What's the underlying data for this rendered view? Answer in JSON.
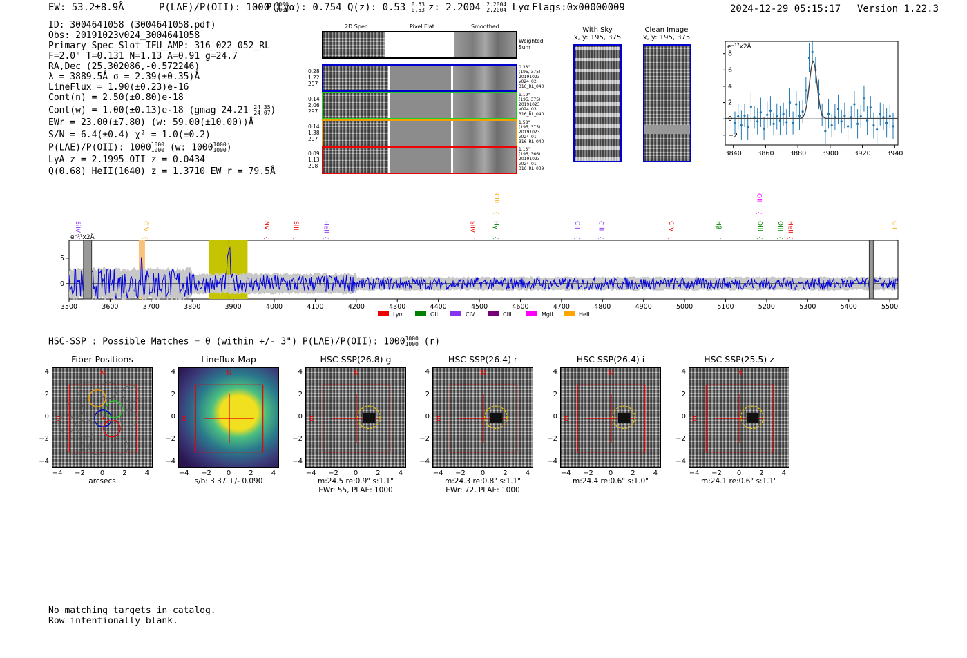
{
  "header": {
    "ew": "EW: 53.2±8.9Å",
    "plae_label": "P(LAE)/P(OII): 1000",
    "plae_hi": "1000",
    "plae_lo": "1000",
    "plya": "P(Lyα): 0.754",
    "qz_label": "Q(z): 0.53",
    "qz_hi": "0.53",
    "qz_lo": "0.53",
    "z_label": "z: 2.2004",
    "z_hi": "2.2004",
    "z_lo": "2.2004",
    "line": "Lyα",
    "flags": "Flags:0x00000009",
    "timestamp": "2024-12-29 05:15:17",
    "version": "Version 1.22.3"
  },
  "info": {
    "id": "ID: 3004641058 (3004641058.pdf)",
    "obs": "Obs: 20191023v024_3004641058",
    "primary": "Primary Spec_Slot_IFU_AMP: 316_022_052_RL",
    "fparams": "F=2.0\"  T=0.131  N=1.13  A=0.91  g=24.7",
    "radec": "RA,Dec (25.302086,-0.572246)",
    "lambda": "λ = 3889.5Å   σ = 2.39(±0.35)Å",
    "lineflux": "LineFlux = 1.90(±0.23)e-16",
    "contn": "Cont(n) = 2.50(±0.80)e-18",
    "contw": "Cont(w) = 1.00(±0.13)e-18 (gmag 24.21",
    "gmag_hi": "24.35",
    "gmag_lo": "24.07",
    "ewr": "EWr = 23.00(±7.80) (w: 59.00(±10.00))Å",
    "sn": "S/N = 6.4(±0.4)  χ² = 1.0(±0.2)",
    "plae": "P(LAE)/P(OII): 1000",
    "plae_hi": "1000",
    "plae_lo": "1000",
    "plae_w": "(w: 1000",
    "plae_w_hi": "1000",
    "plae_w_lo": "1000",
    "lya": "LyA z = 2.1995   OII z = 0.0434",
    "heii": "Q(0.68) HeII(1640) z = 1.3710   EW r = 79.5Å"
  },
  "cutouts": {
    "col_2d": "2D Spec",
    "col_flat": "Pixel Flat",
    "col_smooth": "Smoothed",
    "weighted": "Weighted Sum",
    "rows": [
      {
        "left": [
          "0.28",
          "1.22",
          "297"
        ],
        "right": [
          "0.38\"",
          "(195, 375)",
          "20191023",
          "v024_02",
          "316_RL_040"
        ],
        "color": "#0000cc"
      },
      {
        "left": [
          "0.14",
          "2.06",
          "297"
        ],
        "right": [
          "1.19\"",
          "(195, 375)",
          "20191023",
          "v024_03",
          "316_RL_040"
        ],
        "color": "#22cc22"
      },
      {
        "left": [
          "0.14",
          "1.38",
          "297"
        ],
        "right": [
          "1.58\"",
          "(195, 375)",
          "20191023",
          "v024_01",
          "316_RL_040"
        ],
        "color": "#f0a000"
      },
      {
        "left": [
          "0.09",
          "1.13",
          "298"
        ],
        "right": [
          "1.13\"",
          "(195, 366)",
          "20191023",
          "v024_01",
          "316_RL_039"
        ],
        "color": "#ee0000"
      }
    ]
  },
  "sky": {
    "with_sky": "With Sky",
    "with_sky_xy": "x, y: 195, 375",
    "clean": "Clean Image",
    "clean_xy": "x, y: 195, 375"
  },
  "zoom_chart": {
    "ylabel": "e⁻¹⁷x2Å",
    "xticks": [
      "3840",
      "3860",
      "3880",
      "3900",
      "3920",
      "3940"
    ],
    "yticks": [
      "8",
      "6",
      "4",
      "2",
      "0",
      "−2"
    ]
  },
  "spectrum": {
    "ylabel": "e⁻¹⁷x2Å",
    "xticks": [
      "3500",
      "3600",
      "3700",
      "3800",
      "3900",
      "4000",
      "4100",
      "4200",
      "4300",
      "4400",
      "4500",
      "4600",
      "4700",
      "4800",
      "4900",
      "5000",
      "5100",
      "5200",
      "5300",
      "5400",
      "5500"
    ],
    "yticks": [
      "5",
      "0"
    ],
    "legend": [
      {
        "label": "Lyα",
        "color": "#ee0000"
      },
      {
        "label": "OII",
        "color": "#008000"
      },
      {
        "label": "CIV",
        "color": "#8833ee"
      },
      {
        "label": "CIII",
        "color": "#770077"
      },
      {
        "label": "MgII",
        "color": "#ff00ff"
      },
      {
        "label": "HeII",
        "color": "#ffa500"
      }
    ],
    "line_labels": [
      {
        "name": "SiIV",
        "wave": 3512,
        "color": "#8833ee",
        "high": false
      },
      {
        "name": "CIV",
        "wave": 3677,
        "color": "#ffa500",
        "high": false
      },
      {
        "name": "NV",
        "wave": 3972,
        "color": "#ee0000",
        "high": false
      },
      {
        "name": "SiII",
        "wave": 4044,
        "color": "#ee0000",
        "high": false
      },
      {
        "name": "HeII",
        "wave": 4117,
        "color": "#8833ee",
        "high": false
      },
      {
        "name": "SiIV",
        "wave": 4474,
        "color": "#ee0000",
        "high": false
      },
      {
        "name": "Hγ",
        "wave": 4531,
        "color": "#008000",
        "high": false
      },
      {
        "name": "CIII",
        "wave": 4532,
        "color": "#ffa500",
        "high": true
      },
      {
        "name": "CII",
        "wave": 4729,
        "color": "#8833ee",
        "high": false
      },
      {
        "name": "CIII",
        "wave": 4787,
        "color": "#8833ee",
        "high": false
      },
      {
        "name": "CIV",
        "wave": 4958,
        "color": "#ee0000",
        "high": false
      },
      {
        "name": "Hβ",
        "wave": 5073,
        "color": "#008000",
        "high": false
      },
      {
        "name": "OIII",
        "wave": 5174,
        "color": "#008000",
        "high": false
      },
      {
        "name": "OII",
        "wave": 5172,
        "color": "#ff00ff",
        "high": true
      },
      {
        "name": "OIII",
        "wave": 5224,
        "color": "#008000",
        "high": false
      },
      {
        "name": "HeII",
        "wave": 5248,
        "color": "#ee0000",
        "high": false
      },
      {
        "name": "CII",
        "wave": 5502,
        "color": "#ffa500",
        "high": false
      }
    ]
  },
  "hsc": {
    "title": "HSC-SSP : Possible Matches = 0 (within +/- 3\")  P(LAE)/P(OII): 1000",
    "plae_hi": "1000",
    "plae_lo": "1000",
    "suffix": "(r)"
  },
  "stamps": [
    {
      "title": "Fiber Positions",
      "cap1": "arcsecs",
      "cap2": ""
    },
    {
      "title": "Lineflux Map",
      "cap1": "s/b: 3.37 +/- 0.090",
      "cap2": ""
    },
    {
      "title": "HSC SSP(26.8) g",
      "cap1": "m:24.5  re:0.9\"  s:1.1\"",
      "cap2": "EWr: 55, PLAE: 1000"
    },
    {
      "title": "HSC SSP(26.4) r",
      "cap1": "m:24.3  re:0.8\"  s:1.1\"",
      "cap2": "EWr: 72, PLAE: 1000"
    },
    {
      "title": "HSC SSP(26.4) i",
      "cap1": "m:24.4  re:0.6\"  s:1.0\"",
      "cap2": ""
    },
    {
      "title": "HSC SSP(25.5) z",
      "cap1": "m:24.1  re:0.6\"  s:1.1\"",
      "cap2": ""
    }
  ],
  "stamp_axis": {
    "xticks": [
      "−4",
      "−2",
      "0",
      "2",
      "4"
    ],
    "yticks": [
      "4",
      "2",
      "0",
      "−2",
      "−4"
    ],
    "north": "N",
    "east": "E"
  },
  "footer": {
    "line1": "No matching targets in catalog.",
    "line2": "Row intentionally blank."
  },
  "chart_data": [
    {
      "type": "scatter",
      "title": "",
      "xlabel": "",
      "ylabel": "e-17x2Å",
      "xlim": [
        3835,
        3942
      ],
      "ylim": [
        -3.2,
        9.5
      ],
      "x": [
        3841,
        3843,
        3845,
        3847,
        3849,
        3851,
        3853,
        3855,
        3857,
        3859,
        3861,
        3863,
        3865,
        3867,
        3869,
        3871,
        3873,
        3875,
        3877,
        3879,
        3881,
        3883,
        3885,
        3887,
        3889,
        3891,
        3893,
        3895,
        3897,
        3899,
        3901,
        3903,
        3905,
        3907,
        3909,
        3911,
        3913,
        3915,
        3917,
        3919,
        3921,
        3923,
        3925,
        3927,
        3929,
        3931,
        3933,
        3935,
        3937,
        3939
      ],
      "y": [
        -0.5,
        0.3,
        -0.8,
        0.4,
        -1.0,
        1.5,
        0.2,
        -0.3,
        0.8,
        -1.2,
        0.5,
        1.0,
        -0.6,
        0.3,
        -0.2,
        0.6,
        -0.4,
        2.0,
        -0.5,
        1.8,
        0.4,
        0.9,
        3.5,
        7.5,
        8.2,
        6.0,
        3.0,
        0.5,
        -1.5,
        0.6,
        -0.8,
        0.2,
        1.2,
        -0.3,
        0.4,
        -0.9,
        0.2,
        1.8,
        -0.6,
        0.3,
        2.5,
        -0.2,
        1.4,
        -0.8,
        -1.3,
        0.6,
        0.2,
        -0.5,
        0.3,
        -0.9
      ],
      "fit_peak": 7.0,
      "fit_center": 3889.5,
      "fit_sigma": 2.39
    },
    {
      "type": "line",
      "title": "",
      "xlabel": "",
      "ylabel": "e-17x2Å",
      "xlim": [
        3500,
        5520
      ],
      "ylim": [
        -3,
        8.5
      ],
      "series": [
        {
          "name": "flux",
          "values": "noise around 0, amplitude ~3 blue-end, ~1.2 red-end; emission at 3889.5 peak 7.5; 3677 spike 5"
        }
      ],
      "highlight_range": [
        3840,
        3935
      ]
    }
  ]
}
